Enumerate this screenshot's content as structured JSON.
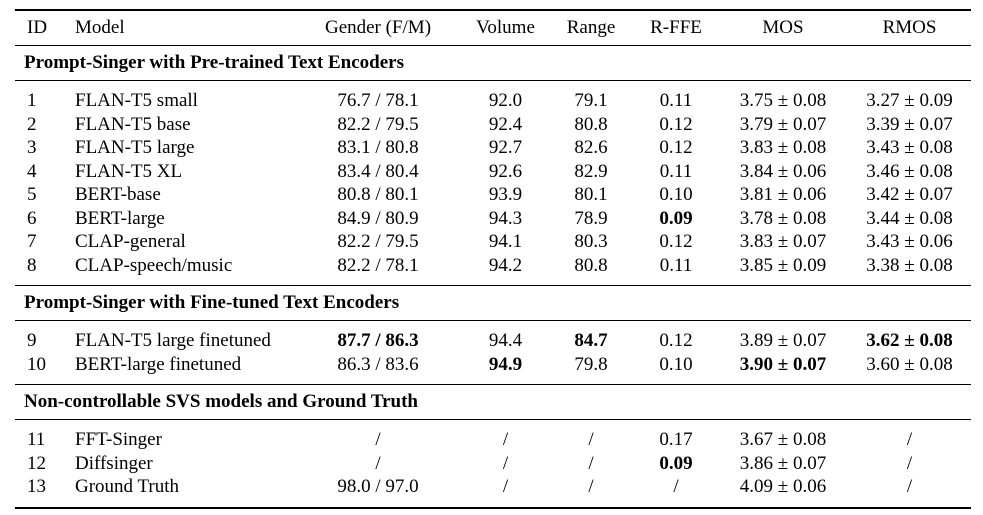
{
  "table": {
    "headers": [
      "ID",
      "Model",
      "Gender (F/M)",
      "Volume",
      "Range",
      "R-FFE",
      "MOS",
      "RMOS"
    ],
    "sections": [
      {
        "title": "Prompt-Singer with Pre-trained Text Encoders",
        "rows": [
          {
            "id": "1",
            "model": "FLAN-T5 small",
            "gender": "76.7 / 78.1",
            "volume": "92.0",
            "range": "79.1",
            "rffe": "0.11",
            "mos": "3.75 ± 0.08",
            "rmos": "3.27 ± 0.09"
          },
          {
            "id": "2",
            "model": "FLAN-T5 base",
            "gender": "82.2 / 79.5",
            "volume": "92.4",
            "range": "80.8",
            "rffe": "0.12",
            "mos": "3.79 ± 0.07",
            "rmos": "3.39 ± 0.07"
          },
          {
            "id": "3",
            "model": "FLAN-T5 large",
            "gender": "83.1 / 80.8",
            "volume": "92.7",
            "range": "82.6",
            "rffe": "0.12",
            "mos": "3.83 ± 0.08",
            "rmos": "3.43 ± 0.08"
          },
          {
            "id": "4",
            "model": "FLAN-T5 XL",
            "gender": "83.4 / 80.4",
            "volume": "92.6",
            "range": "82.9",
            "rffe": "0.11",
            "mos": "3.84 ± 0.06",
            "rmos": "3.46 ± 0.08"
          },
          {
            "id": "5",
            "model": "BERT-base",
            "gender": "80.8 / 80.1",
            "volume": "93.9",
            "range": "80.1",
            "rffe": "0.10",
            "mos": "3.81 ± 0.06",
            "rmos": "3.42 ± 0.07"
          },
          {
            "id": "6",
            "model": "BERT-large",
            "gender": "84.9 / 80.9",
            "volume": "94.3",
            "range": "78.9",
            "rffe": "0.09",
            "mos": "3.78 ± 0.08",
            "rmos": "3.44 ± 0.08"
          },
          {
            "id": "7",
            "model": "CLAP-general",
            "gender": "82.2 / 79.5",
            "volume": "94.1",
            "range": "80.3",
            "rffe": "0.12",
            "mos": "3.83 ± 0.07",
            "rmos": "3.43 ± 0.06"
          },
          {
            "id": "8",
            "model": "CLAP-speech/music",
            "gender": "82.2 / 78.1",
            "volume": "94.2",
            "range": "80.8",
            "rffe": "0.11",
            "mos": "3.85 ± 0.09",
            "rmos": "3.38 ± 0.08"
          }
        ]
      },
      {
        "title": "Prompt-Singer with Fine-tuned Text Encoders",
        "rows": [
          {
            "id": "9",
            "model": "FLAN-T5 large finetuned",
            "gender": "87.7 / 86.3",
            "volume": "94.4",
            "range": "84.7",
            "rffe": "0.12",
            "mos": "3.89 ± 0.07",
            "rmos": "3.62 ± 0.08"
          },
          {
            "id": "10",
            "model": "BERT-large finetuned",
            "gender": "86.3 / 83.6",
            "volume": "94.9",
            "range": "79.8",
            "rffe": "0.10",
            "mos": "3.90 ± 0.07",
            "rmos": "3.60 ± 0.08"
          }
        ]
      },
      {
        "title": "Non-controllable SVS models and Ground Truth",
        "rows": [
          {
            "id": "11",
            "model": "FFT-Singer",
            "gender": "/",
            "volume": "/",
            "range": "/",
            "rffe": "0.17",
            "mos": "3.67 ± 0.08",
            "rmos": "/"
          },
          {
            "id": "12",
            "model": "Diffsinger",
            "gender": "/",
            "volume": "/",
            "range": "/",
            "rffe": "0.09",
            "mos": "3.86 ± 0.07",
            "rmos": "/"
          },
          {
            "id": "13",
            "model": "Ground Truth",
            "gender": "98.0 / 97.0",
            "volume": "/",
            "range": "/",
            "rffe": "/",
            "mos": "4.09 ± 0.06",
            "rmos": "/"
          }
        ]
      }
    ]
  }
}
